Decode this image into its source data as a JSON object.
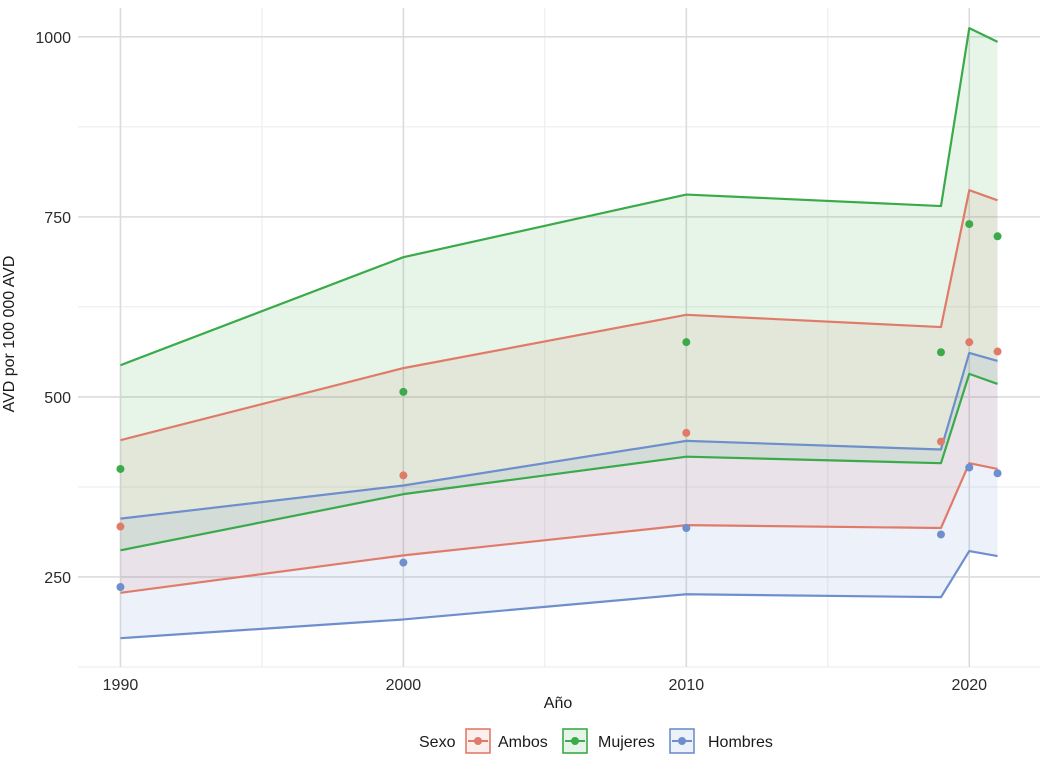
{
  "chart_data": {
    "type": "area",
    "xlabel": "Año",
    "ylabel": "AVD por 100 000 AVD",
    "x_ticks": [
      1990,
      2000,
      2010,
      2020
    ],
    "y_ticks": [
      250,
      500,
      750,
      1000
    ],
    "y_tick_labels": [
      "250",
      "500",
      "750",
      "1000"
    ],
    "x_tick_labels": [
      "1990",
      "2000",
      "2010",
      "2020"
    ],
    "xlim": [
      1988.5,
      2022.5
    ],
    "ylim": [
      125,
      1040
    ],
    "grid": true,
    "legend": {
      "title": "Sexo",
      "position": "bottom",
      "entries": [
        "Ambos",
        "Mujeres",
        "Hombres"
      ]
    },
    "x": [
      1990,
      2000,
      2010,
      2019,
      2020,
      2021
    ],
    "series": [
      {
        "name": "Ambos",
        "color": "#E07B6A",
        "values": [
          320,
          391,
          450,
          438,
          576,
          563
        ],
        "lower": [
          228,
          280,
          322,
          318,
          408,
          400
        ],
        "upper": [
          440,
          540,
          614,
          597,
          787,
          773
        ]
      },
      {
        "name": "Mujeres",
        "color": "#3BAA4A",
        "values": [
          400,
          507,
          576,
          562,
          740,
          723
        ],
        "lower": [
          287,
          365,
          417,
          408,
          532,
          518
        ],
        "upper": [
          544,
          694,
          781,
          765,
          1012,
          993
        ]
      },
      {
        "name": "Hombres",
        "color": "#6E8FCC",
        "values": [
          236,
          270,
          318,
          309,
          402,
          394
        ],
        "lower": [
          165,
          191,
          226,
          222,
          286,
          279
        ],
        "upper": [
          331,
          377,
          439,
          427,
          561,
          550
        ]
      }
    ]
  }
}
